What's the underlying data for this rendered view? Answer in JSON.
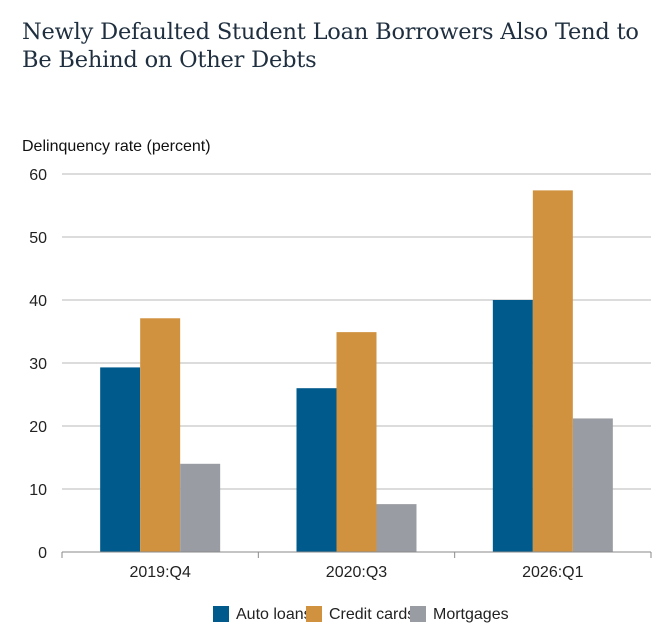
{
  "title": "Newly Defaulted Student Loan Borrowers Also Tend to Be Behind on Other Debts",
  "chart_data": {
    "type": "bar",
    "ylabel": "Delinquency rate (percent)",
    "xlabel": "",
    "ylim": [
      0,
      60
    ],
    "yticks": [
      0,
      10,
      20,
      30,
      40,
      50,
      60
    ],
    "grid": true,
    "legend_position": "bottom",
    "categories": [
      "2019:Q4",
      "2020:Q3",
      "2026:Q1"
    ],
    "series": [
      {
        "name": "Auto loans",
        "color": "#005a8c",
        "values": [
          29.3,
          26.0,
          40.0
        ]
      },
      {
        "name": "Credit cards",
        "color": "#d19240",
        "values": [
          37.1,
          34.9,
          57.4
        ]
      },
      {
        "name": "Mortgages",
        "color": "#9a9ca3",
        "values": [
          14.0,
          7.6,
          21.2
        ]
      }
    ]
  }
}
